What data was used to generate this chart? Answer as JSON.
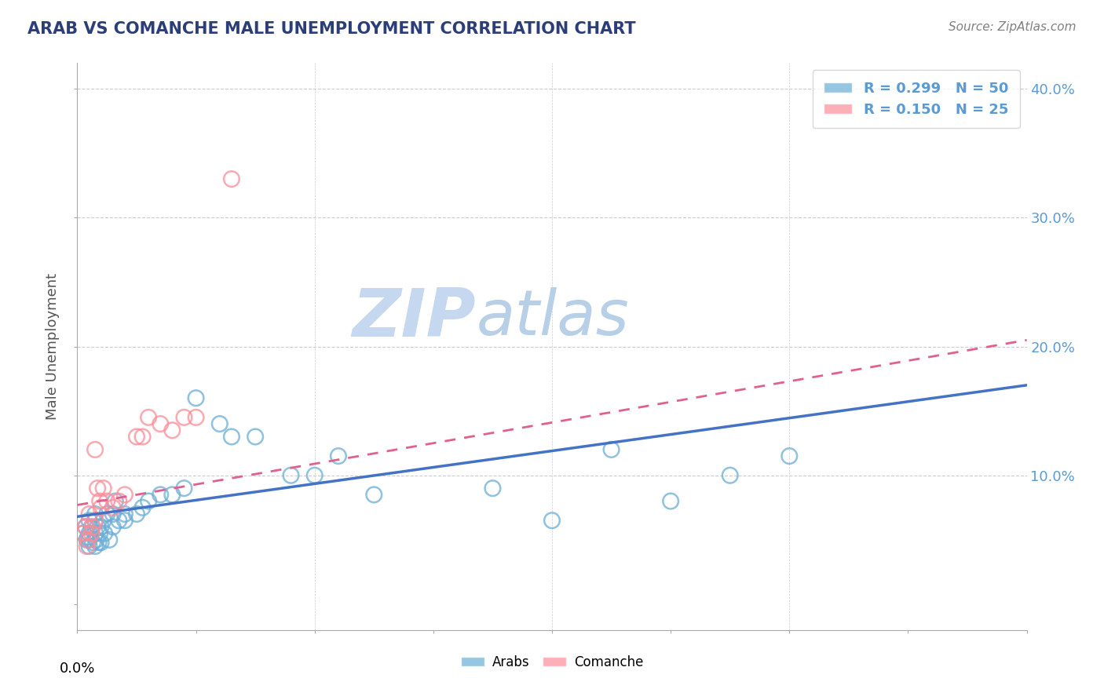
{
  "title": "ARAB VS COMANCHE MALE UNEMPLOYMENT CORRELATION CHART",
  "source": "Source: ZipAtlas.com",
  "ylabel": "Male Unemployment",
  "xlim": [
    0.0,
    0.8
  ],
  "ylim": [
    -0.02,
    0.42
  ],
  "arab_color": "#6baed6",
  "comanche_color": "#fc8d99",
  "arab_trend_color": "#4472c4",
  "comanche_trend_color": "#e06090",
  "arab_R": 0.299,
  "arab_N": 50,
  "comanche_R": 0.15,
  "comanche_N": 25,
  "arab_x": [
    0.005,
    0.007,
    0.008,
    0.009,
    0.01,
    0.01,
    0.01,
    0.01,
    0.012,
    0.013,
    0.015,
    0.015,
    0.015,
    0.015,
    0.016,
    0.017,
    0.018,
    0.019,
    0.02,
    0.02,
    0.022,
    0.023,
    0.025,
    0.027,
    0.03,
    0.03,
    0.032,
    0.035,
    0.04,
    0.04,
    0.05,
    0.055,
    0.06,
    0.07,
    0.08,
    0.09,
    0.1,
    0.12,
    0.13,
    0.15,
    0.18,
    0.2,
    0.22,
    0.25,
    0.35,
    0.4,
    0.45,
    0.5,
    0.55,
    0.6
  ],
  "arab_y": [
    0.055,
    0.06,
    0.05,
    0.052,
    0.055,
    0.065,
    0.05,
    0.045,
    0.06,
    0.048,
    0.055,
    0.065,
    0.07,
    0.045,
    0.05,
    0.06,
    0.048,
    0.055,
    0.06,
    0.048,
    0.065,
    0.055,
    0.07,
    0.05,
    0.07,
    0.06,
    0.08,
    0.065,
    0.065,
    0.07,
    0.07,
    0.075,
    0.08,
    0.085,
    0.085,
    0.09,
    0.16,
    0.14,
    0.13,
    0.13,
    0.1,
    0.1,
    0.115,
    0.085,
    0.09,
    0.065,
    0.12,
    0.08,
    0.1,
    0.115
  ],
  "comanche_x": [
    0.005,
    0.007,
    0.008,
    0.009,
    0.01,
    0.012,
    0.013,
    0.015,
    0.015,
    0.017,
    0.019,
    0.02,
    0.022,
    0.025,
    0.03,
    0.035,
    0.04,
    0.05,
    0.055,
    0.06,
    0.07,
    0.08,
    0.09,
    0.1,
    0.13
  ],
  "comanche_y": [
    0.055,
    0.06,
    0.045,
    0.05,
    0.07,
    0.055,
    0.06,
    0.065,
    0.12,
    0.09,
    0.08,
    0.075,
    0.09,
    0.08,
    0.075,
    0.08,
    0.085,
    0.13,
    0.13,
    0.145,
    0.14,
    0.135,
    0.145,
    0.145,
    0.33
  ],
  "background_color": "#ffffff",
  "grid_color": "#cccccc",
  "title_color": "#2c3e7a",
  "axis_label_color": "#555555",
  "tick_label_color_right": "#5b9bd5",
  "watermark_color": "#dce9f5",
  "legend_arab_label": "R = 0.299   N = 50",
  "legend_comanche_label": "R = 0.150   N = 25",
  "arab_trend_start_y": 0.068,
  "arab_trend_end_y": 0.17,
  "comanche_trend_start_y": 0.077,
  "comanche_trend_end_y": 0.205
}
